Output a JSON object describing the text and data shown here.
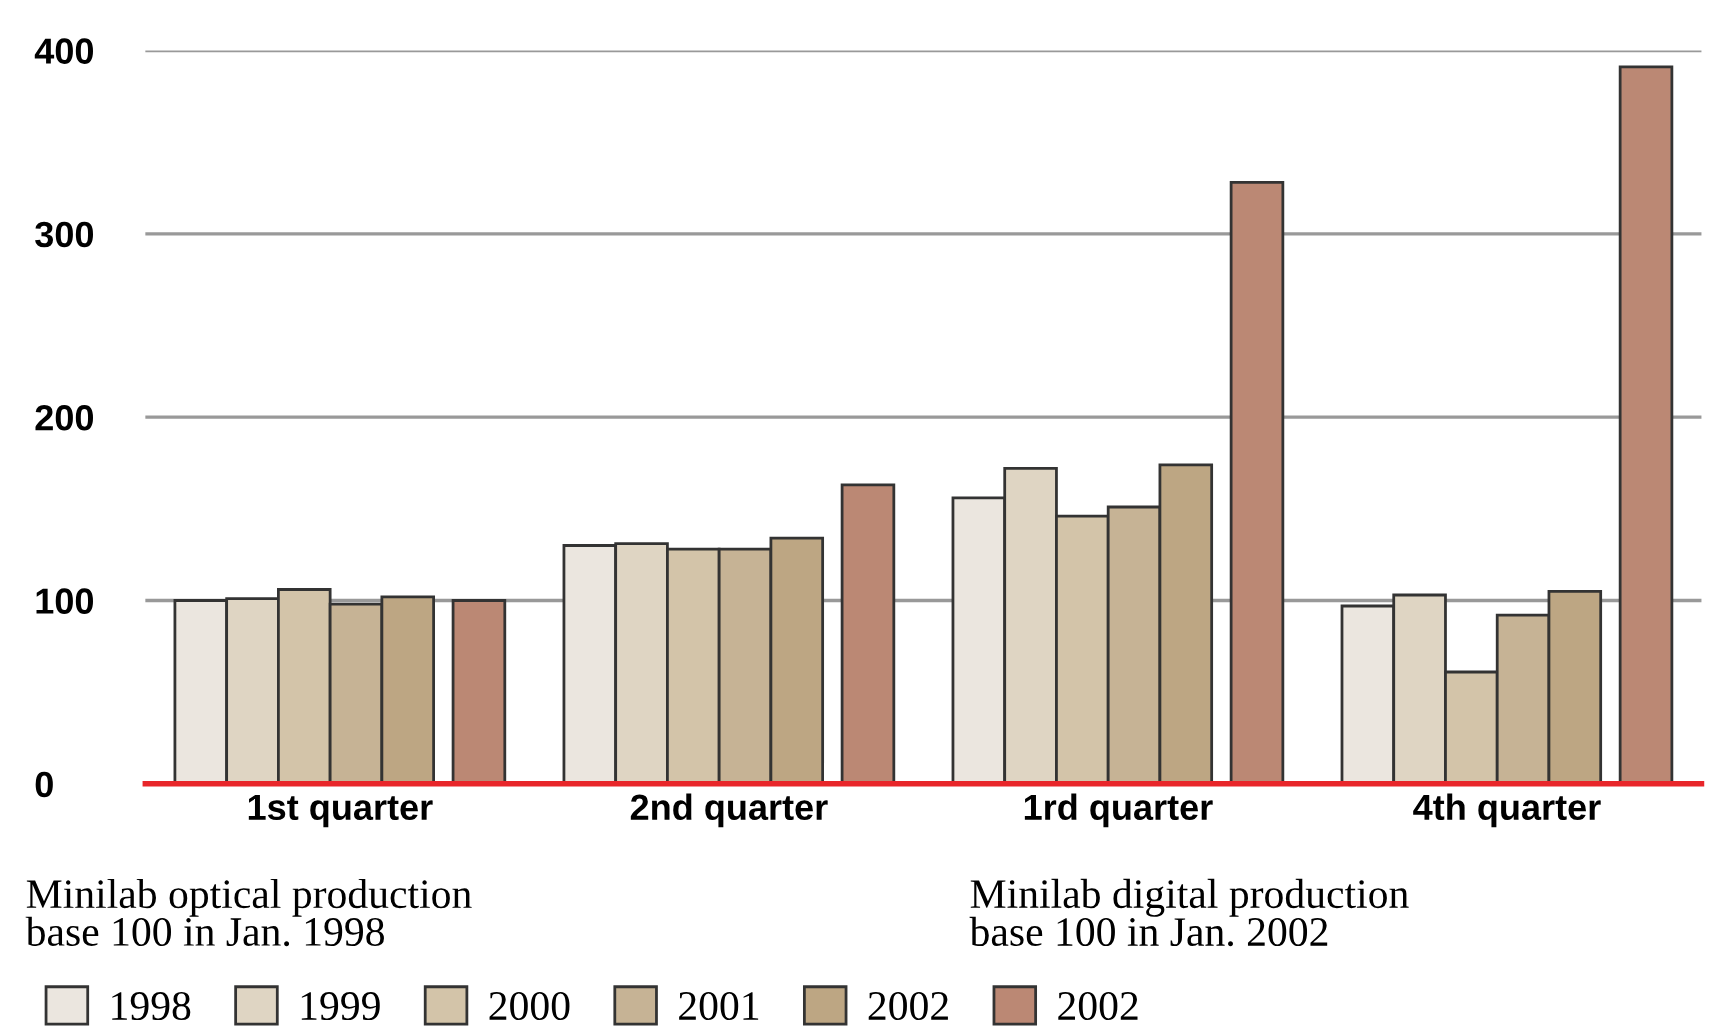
{
  "chart_data": {
    "type": "bar",
    "categories": [
      "1st quarter",
      "2nd quarter",
      "1rd quarter",
      "4th quarter"
    ],
    "series": [
      {
        "name": "1998",
        "color": "#ebe6df",
        "values": [
          100,
          130,
          156,
          97
        ]
      },
      {
        "name": "1999",
        "color": "#dfd5c3",
        "values": [
          101,
          131,
          172,
          103
        ]
      },
      {
        "name": "2000",
        "color": "#d3c4a9",
        "values": [
          106,
          128,
          146,
          61
        ]
      },
      {
        "name": "2001",
        "color": "#c6b395",
        "values": [
          98,
          128,
          151,
          92
        ]
      },
      {
        "name": "2002",
        "color": "#bda683",
        "values": [
          102,
          134,
          174,
          105
        ]
      },
      {
        "name": "2002",
        "color": "#bb8874",
        "values": [
          100,
          163,
          328,
          391
        ]
      }
    ],
    "ylim": [
      0,
      400
    ],
    "yticks": [
      0,
      100,
      200,
      300,
      400
    ],
    "grid": "y",
    "legend": "bottom",
    "annotations": [
      "Minilab optical production\nbase 100 in Jan. 1998",
      "Minilab digital production\nbase 100 in Jan. 2002"
    ]
  }
}
